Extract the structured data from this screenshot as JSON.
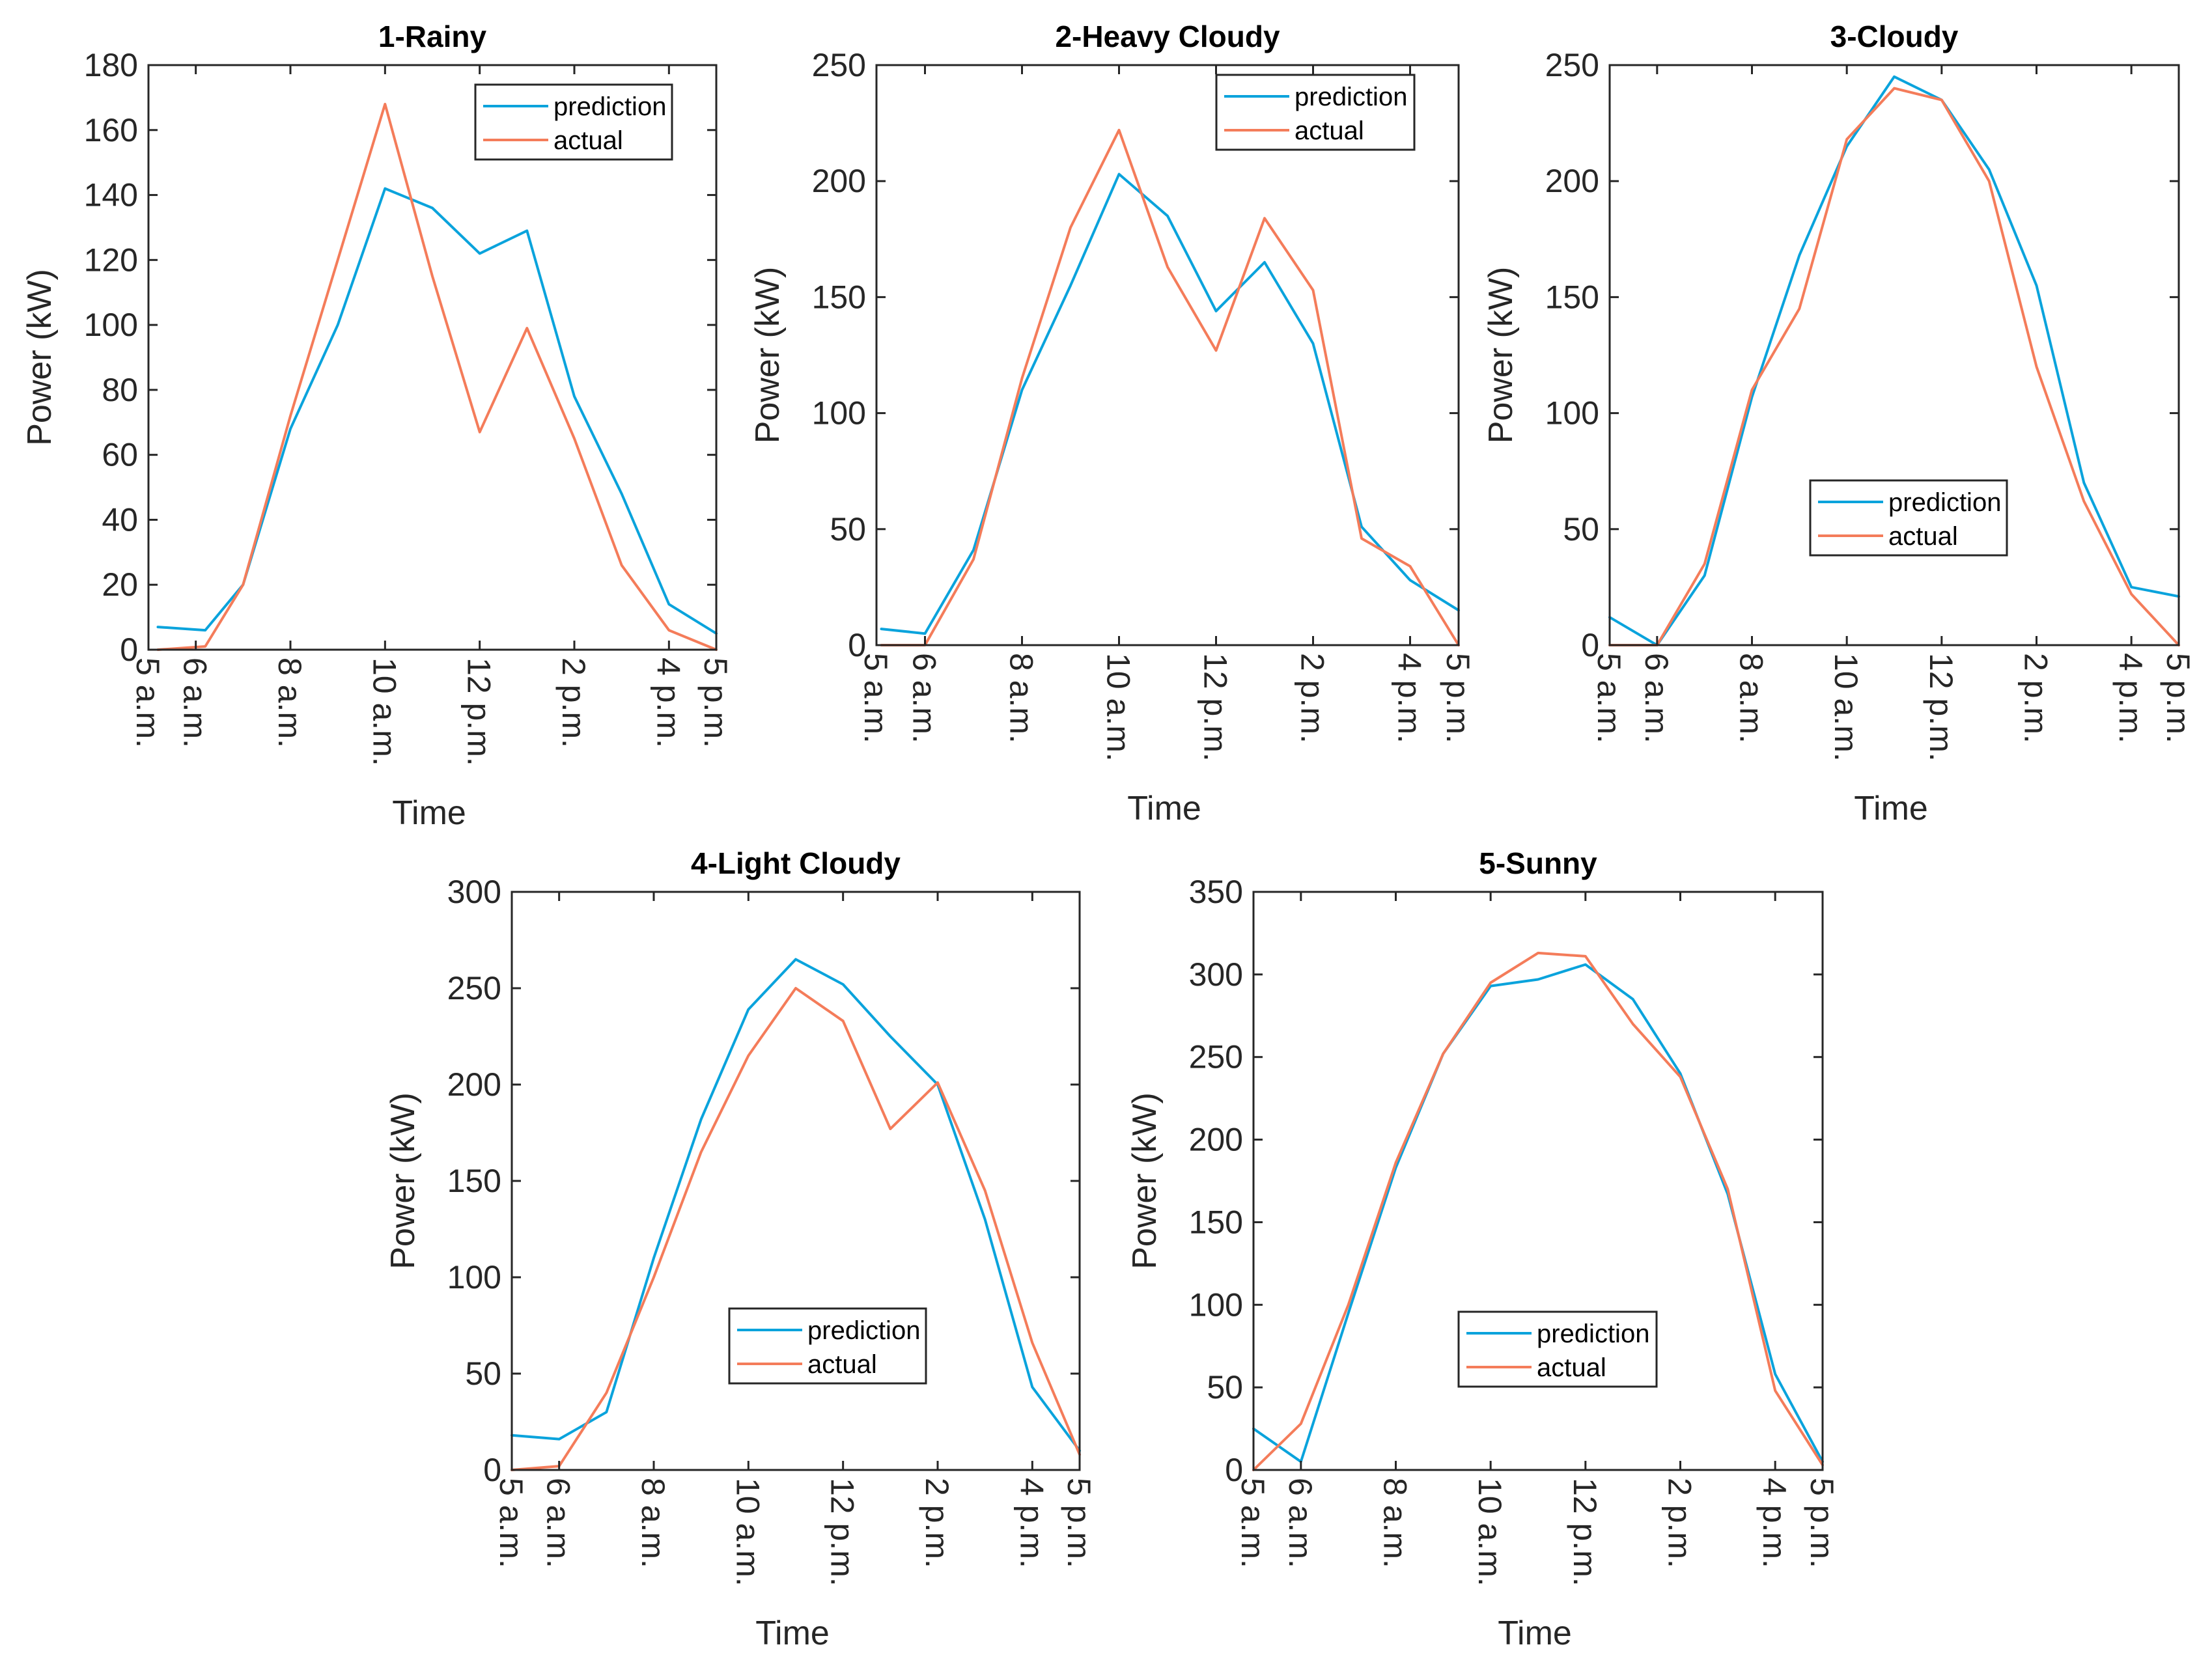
{
  "colors": {
    "prediction": "#0AA3DC",
    "actual": "#F47C5A",
    "axis": "#262626"
  },
  "legend": {
    "prediction": "prediction",
    "actual": "actual"
  },
  "chart_data": [
    {
      "type": "line",
      "title": "1-Rainy",
      "xlabel": "Time",
      "ylabel": "Power (kW)",
      "xlim": [
        5,
        17
      ],
      "ylim": [
        0,
        180
      ],
      "yticks": [
        0,
        20,
        40,
        60,
        80,
        100,
        120,
        140,
        160,
        180
      ],
      "xticks": [
        5,
        6,
        8,
        10,
        12,
        14,
        16,
        17
      ],
      "xtick_labels": [
        "5 a.m.",
        "6 a.m.",
        "8 a.m.",
        "10 a.m.",
        "12 p.m.",
        "2 p.m.",
        "4 p.m.",
        "5 p.m."
      ],
      "legend_position": "top-right",
      "x": [
        5.2,
        6.2,
        7,
        8,
        9,
        10,
        11,
        12,
        13,
        14,
        15,
        16,
        17
      ],
      "series": [
        {
          "name": "prediction",
          "values": [
            7,
            6,
            20,
            68,
            100,
            142,
            136,
            122,
            129,
            78,
            48,
            14,
            5
          ]
        },
        {
          "name": "actual",
          "values": [
            0,
            1,
            20,
            72,
            120,
            168,
            115,
            67,
            99,
            65,
            26,
            6,
            0
          ]
        }
      ]
    },
    {
      "type": "line",
      "title": "2-Heavy Cloudy",
      "xlabel": "Time",
      "ylabel": "Power (kW)",
      "xlim": [
        5,
        17
      ],
      "ylim": [
        0,
        250
      ],
      "yticks": [
        0,
        50,
        100,
        150,
        200,
        250
      ],
      "xticks": [
        5,
        6,
        8,
        10,
        12,
        14,
        16,
        17
      ],
      "xtick_labels": [
        "5 a.m.",
        "6 a.m.",
        "8 a.m.",
        "10 a.m.",
        "12 p.m.",
        "2 p.m.",
        "4 p.m.",
        "5 p.m."
      ],
      "legend_position": "top-right",
      "x": [
        5.1,
        6,
        7,
        8,
        9,
        10,
        11,
        12,
        13,
        14,
        15,
        16,
        17
      ],
      "series": [
        {
          "name": "prediction",
          "values": [
            7,
            5,
            41,
            110,
            155,
            203,
            185,
            144,
            165,
            130,
            51,
            28,
            15
          ]
        },
        {
          "name": "actual",
          "values": [
            0,
            0,
            37,
            115,
            180,
            222,
            163,
            127,
            184,
            153,
            46,
            34,
            0
          ]
        }
      ]
    },
    {
      "type": "line",
      "title": "3-Cloudy",
      "xlabel": "Time",
      "ylabel": "Power (kW)",
      "xlim": [
        5,
        17
      ],
      "ylim": [
        0,
        250
      ],
      "yticks": [
        0,
        50,
        100,
        150,
        200,
        250
      ],
      "xticks": [
        5,
        6,
        8,
        10,
        12,
        14,
        16,
        17
      ],
      "xtick_labels": [
        "5 a.m.",
        "6 a.m.",
        "8 a.m.",
        "10 a.m.",
        "12 p.m.",
        "2 p.m.",
        "4 p.m.",
        "5 p.m."
      ],
      "legend_position": "bottom-center",
      "x": [
        5,
        6,
        7,
        8,
        9,
        10,
        11,
        12,
        13,
        14,
        15,
        16,
        17
      ],
      "series": [
        {
          "name": "prediction",
          "values": [
            12,
            0,
            30,
            107,
            168,
            215,
            245,
            235,
            205,
            155,
            70,
            25,
            21
          ]
        },
        {
          "name": "actual",
          "values": [
            0,
            0,
            35,
            110,
            145,
            218,
            240,
            235,
            200,
            120,
            62,
            22,
            0
          ]
        }
      ]
    },
    {
      "type": "line",
      "title": "4-Light Cloudy",
      "xlabel": "Time",
      "ylabel": "Power (kW)",
      "xlim": [
        5,
        17
      ],
      "ylim": [
        0,
        300
      ],
      "yticks": [
        0,
        50,
        100,
        150,
        200,
        250,
        300
      ],
      "xticks": [
        5,
        6,
        8,
        10,
        12,
        14,
        16,
        17
      ],
      "xtick_labels": [
        "5 a.m.",
        "6 a.m.",
        "8 a.m.",
        "10 a.m.",
        "12 p.m.",
        "2 p.m.",
        "4 p.m.",
        "5 p.m."
      ],
      "legend_position": "bottom-center",
      "x": [
        5,
        6,
        7,
        8,
        9,
        10,
        11,
        12,
        13,
        14,
        15,
        16,
        17
      ],
      "series": [
        {
          "name": "prediction",
          "values": [
            18,
            16,
            30,
            110,
            182,
            239,
            265,
            252,
            225,
            200,
            130,
            43,
            10
          ]
        },
        {
          "name": "actual",
          "values": [
            0,
            2,
            40,
            100,
            165,
            215,
            250,
            233,
            177,
            201,
            145,
            66,
            8
          ]
        }
      ]
    },
    {
      "type": "line",
      "title": "5-Sunny",
      "xlabel": "Time",
      "ylabel": "Power (kW)",
      "xlim": [
        5,
        17
      ],
      "ylim": [
        0,
        350
      ],
      "yticks": [
        0,
        50,
        100,
        150,
        200,
        250,
        300,
        350
      ],
      "xticks": [
        5,
        6,
        8,
        10,
        12,
        14,
        16,
        17
      ],
      "xtick_labels": [
        "5 a.m.",
        "6 a.m.",
        "8 a.m.",
        "10 a.m.",
        "12 p.m.",
        "2 p.m.",
        "4 p.m.",
        "5 p.m."
      ],
      "legend_position": "bottom-center",
      "x": [
        5,
        6,
        7,
        8,
        9,
        10,
        11,
        12,
        13,
        14,
        15,
        16,
        17
      ],
      "series": [
        {
          "name": "prediction",
          "values": [
            25,
            5,
            95,
            183,
            252,
            293,
            297,
            306,
            285,
            240,
            167,
            58,
            5
          ]
        },
        {
          "name": "actual",
          "values": [
            0,
            28,
            100,
            186,
            252,
            295,
            313,
            311,
            270,
            238,
            170,
            48,
            3
          ]
        }
      ]
    }
  ]
}
